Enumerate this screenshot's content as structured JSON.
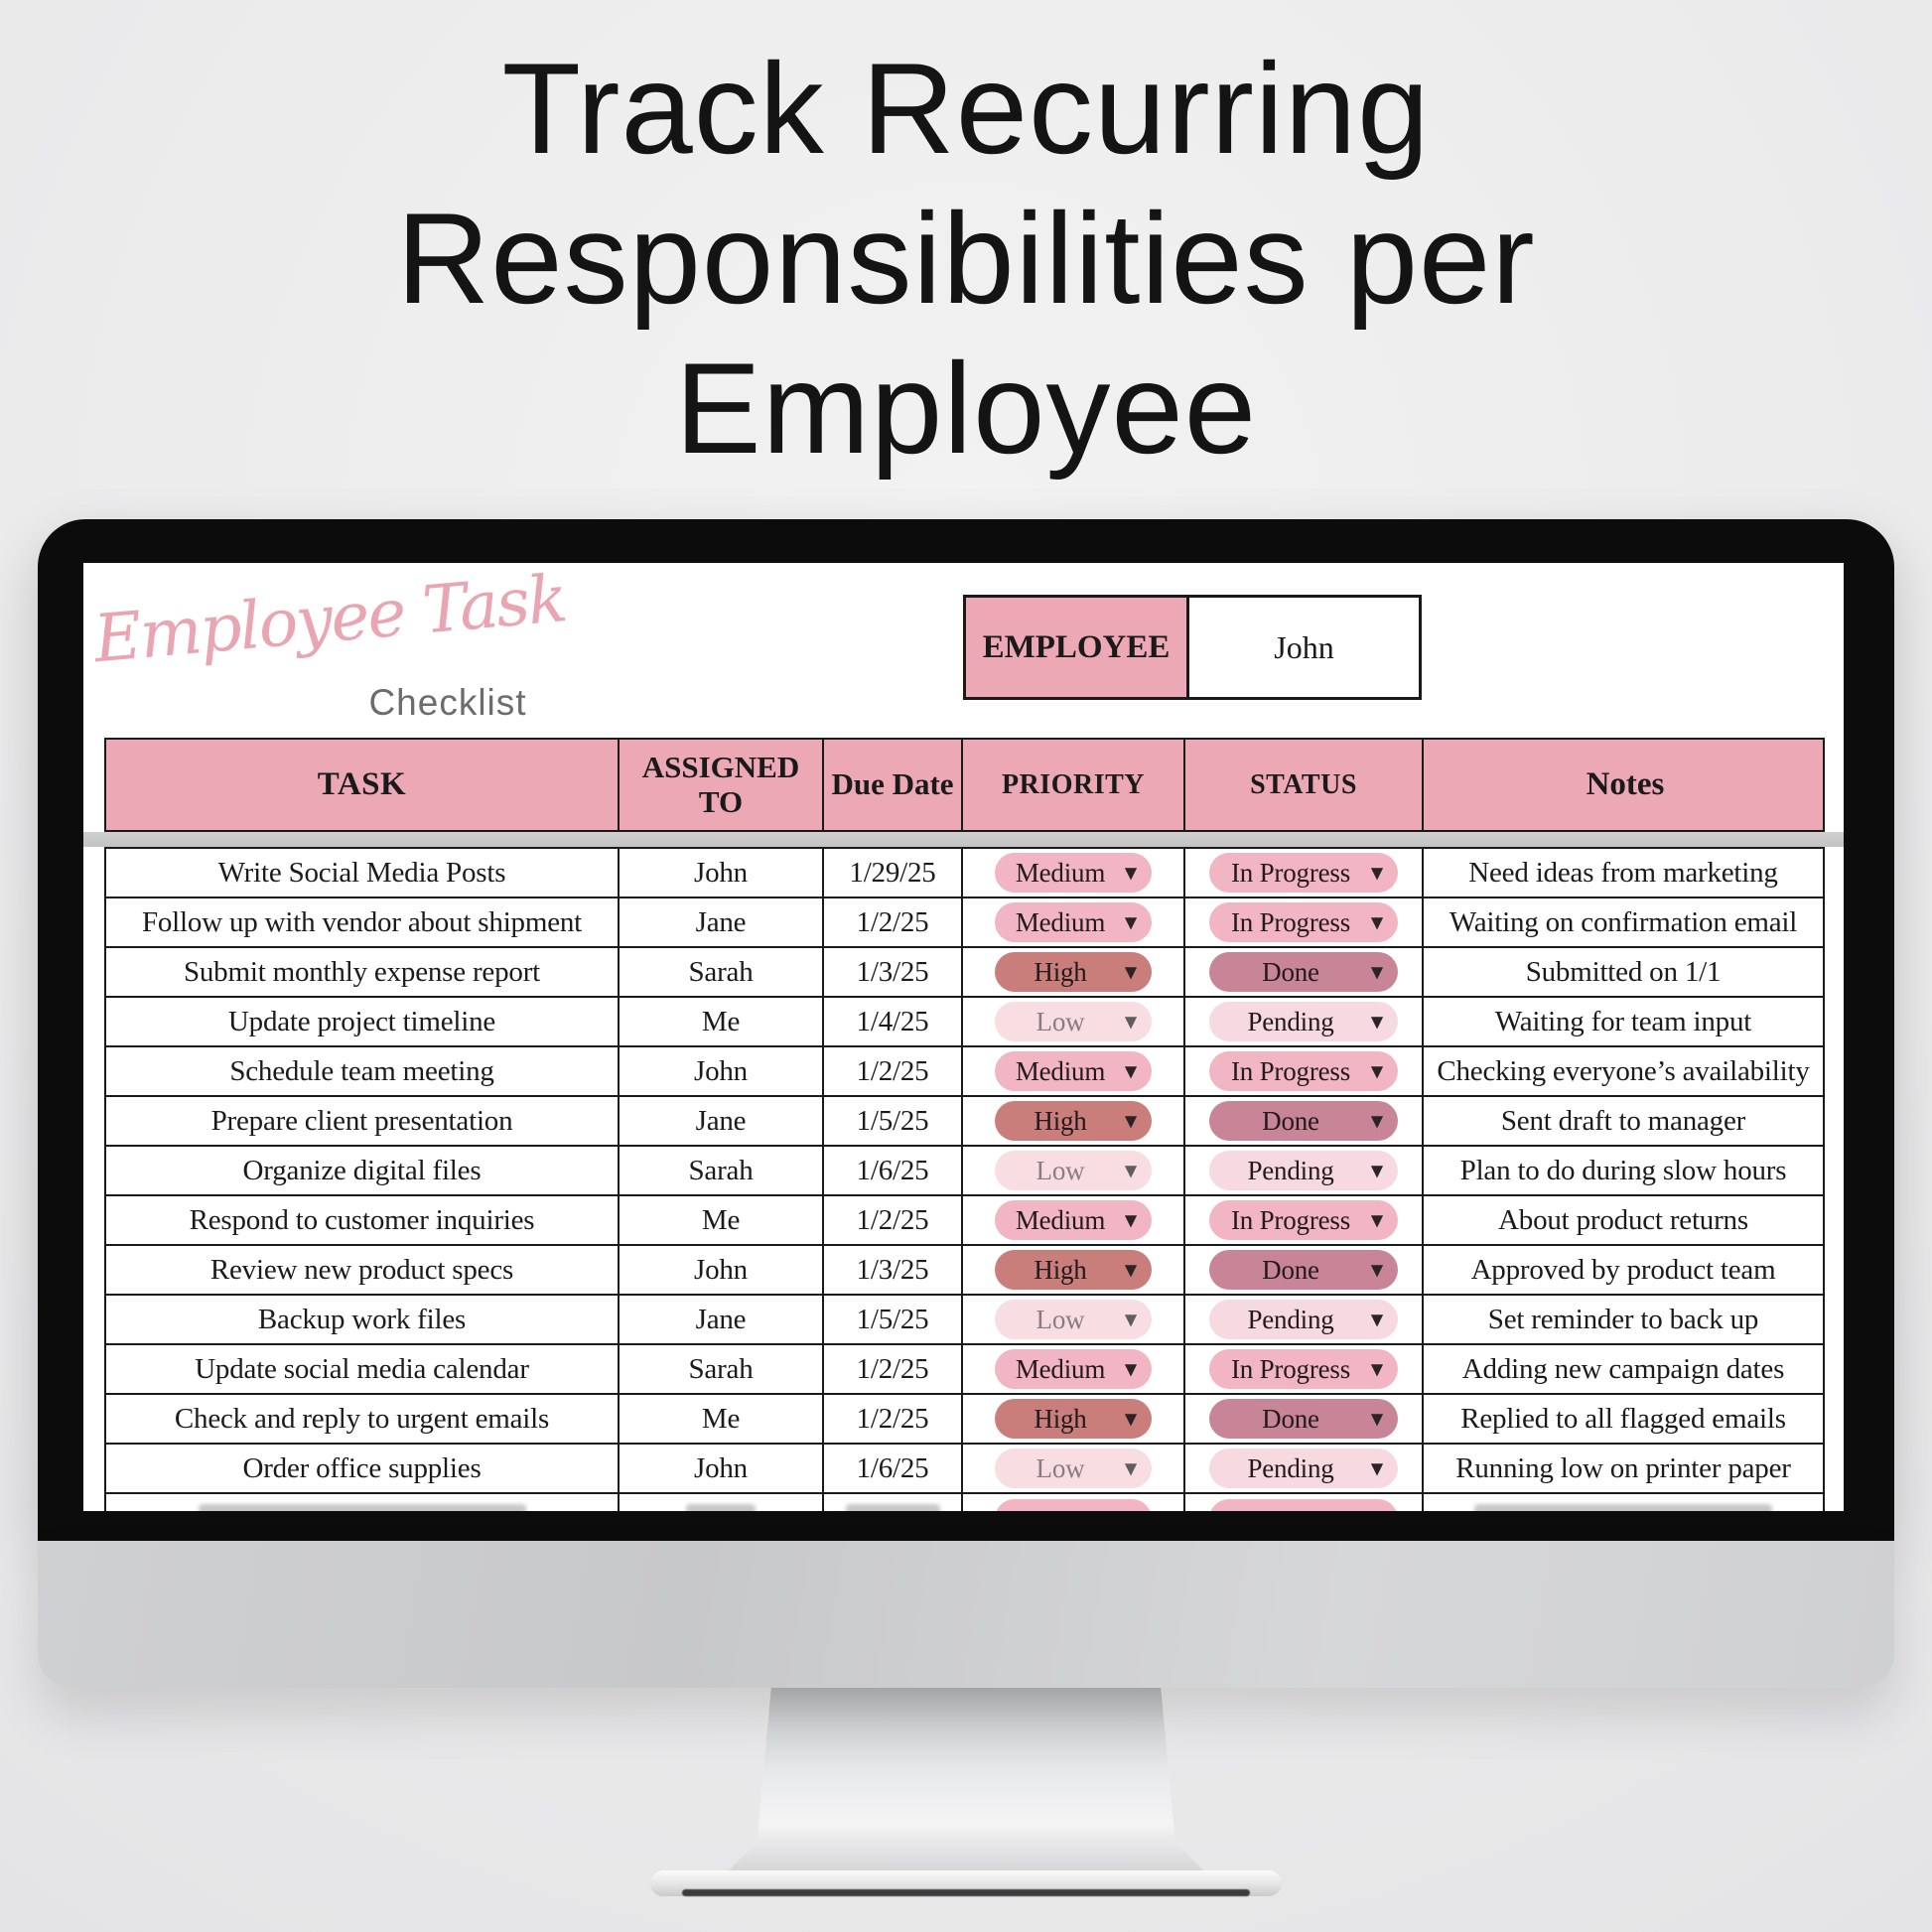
{
  "title": {
    "lines": [
      "Track Recurring",
      "Responsibilities per",
      "Employee"
    ]
  },
  "logo": {
    "script": "Employee Task",
    "subtitle": "Checklist"
  },
  "employee_box": {
    "label": "EMPLOYEE",
    "value": "John"
  },
  "table": {
    "headers": [
      "TASK",
      "ASSIGNED TO",
      "Due Date",
      "PRIORITY",
      "STATUS",
      "Notes"
    ],
    "rows": [
      {
        "task": "Write Social Media Posts",
        "assigned": "John",
        "due": "1/29/25",
        "priority": "Medium",
        "status": "In Progress",
        "notes": "Need ideas from marketing"
      },
      {
        "task": "Follow up with vendor about shipment",
        "assigned": "Jane",
        "due": "1/2/25",
        "priority": "Medium",
        "status": "In Progress",
        "notes": "Waiting on confirmation email"
      },
      {
        "task": "Submit monthly expense report",
        "assigned": "Sarah",
        "due": "1/3/25",
        "priority": "High",
        "status": "Done",
        "notes": "Submitted on 1/1"
      },
      {
        "task": "Update project timeline",
        "assigned": "Me",
        "due": "1/4/25",
        "priority": "Low",
        "status": "Pending",
        "notes": "Waiting for team input"
      },
      {
        "task": "Schedule team meeting",
        "assigned": "John",
        "due": "1/2/25",
        "priority": "Medium",
        "status": "In Progress",
        "notes": "Checking everyone’s availability"
      },
      {
        "task": "Prepare client presentation",
        "assigned": "Jane",
        "due": "1/5/25",
        "priority": "High",
        "status": "Done",
        "notes": "Sent draft to manager"
      },
      {
        "task": "Organize digital files",
        "assigned": "Sarah",
        "due": "1/6/25",
        "priority": "Low",
        "status": "Pending",
        "notes": "Plan to do during slow hours"
      },
      {
        "task": "Respond to customer inquiries",
        "assigned": "Me",
        "due": "1/2/25",
        "priority": "Medium",
        "status": "In Progress",
        "notes": "About product returns"
      },
      {
        "task": "Review new product specs",
        "assigned": "John",
        "due": "1/3/25",
        "priority": "High",
        "status": "Done",
        "notes": "Approved by product team"
      },
      {
        "task": "Backup work files",
        "assigned": "Jane",
        "due": "1/5/25",
        "priority": "Low",
        "status": "Pending",
        "notes": "Set reminder to back up"
      },
      {
        "task": "Update social media calendar",
        "assigned": "Sarah",
        "due": "1/2/25",
        "priority": "Medium",
        "status": "In Progress",
        "notes": "Adding new campaign dates"
      },
      {
        "task": "Check and reply to urgent emails",
        "assigned": "Me",
        "due": "1/2/25",
        "priority": "High",
        "status": "Done",
        "notes": "Replied to all flagged emails"
      },
      {
        "task": "Order office supplies",
        "assigned": "John",
        "due": "1/6/25",
        "priority": "Low",
        "status": "Pending",
        "notes": "Running low on printer paper"
      }
    ]
  },
  "icons": {
    "dropdown": "▼"
  },
  "colors": {
    "header_pink": "#ECA8B5",
    "logo_pink": "#E9A6B2",
    "checklist_gray": "#6C6C6C",
    "pill_medium": "#F2B5C3",
    "pill_high": "#CA7E7B",
    "pill_low": "#F8DEE3",
    "pill_done": "#C98598",
    "pill_pending": "#F7DAE1"
  }
}
